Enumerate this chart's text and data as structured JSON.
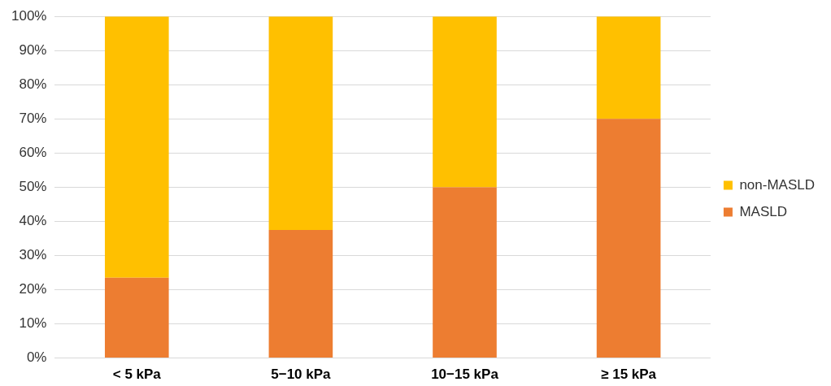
{
  "chart_data": {
    "type": "bar",
    "stacked": true,
    "categories": [
      "< 5 kPa",
      "5−10 kPa",
      "10−15 kPa",
      "≥ 15 kPa"
    ],
    "series": [
      {
        "name": "MASLD",
        "color": "#ed7d31",
        "values": [
          23.5,
          37.5,
          50,
          70
        ]
      },
      {
        "name": "non-MASLD",
        "color": "#ffc000",
        "values": [
          76.5,
          62.5,
          50,
          30
        ]
      }
    ],
    "ylim": [
      0,
      100
    ],
    "yticks": [
      {
        "value": 0,
        "label": "0%"
      },
      {
        "value": 10,
        "label": "10%"
      },
      {
        "value": 20,
        "label": "20%"
      },
      {
        "value": 30,
        "label": "30%"
      },
      {
        "value": 40,
        "label": "40%"
      },
      {
        "value": 50,
        "label": "50%"
      },
      {
        "value": 60,
        "label": "60%"
      },
      {
        "value": 70,
        "label": "70%"
      },
      {
        "value": 80,
        "label": "80%"
      },
      {
        "value": 90,
        "label": "90%"
      },
      {
        "value": 100,
        "label": "100%"
      }
    ],
    "grid": "y",
    "legend": "right"
  }
}
